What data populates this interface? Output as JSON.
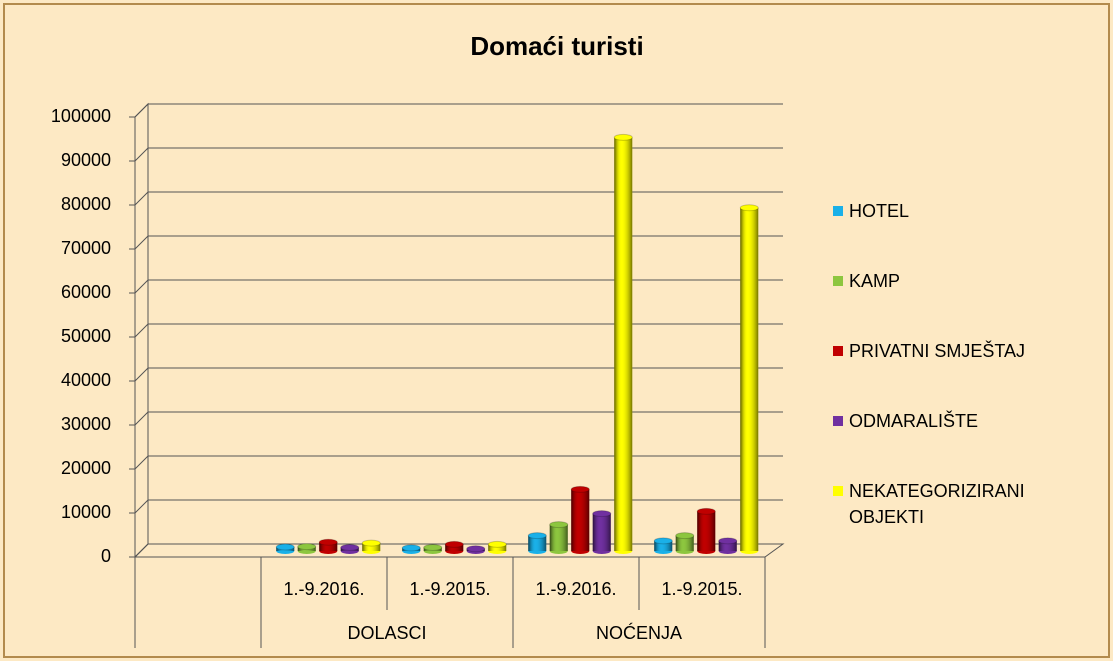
{
  "chart_data": {
    "type": "bar3d",
    "title": "Domaći turisti",
    "categories": [
      null,
      "1.-9.2016.",
      "1.-9.2015.",
      "1.-9.2016.",
      "1.-9.2015."
    ],
    "group_labels": [
      "DOLASCI",
      "NOĆENJA"
    ],
    "series": [
      {
        "name": "HOTEL",
        "color": "#1ab0e8",
        "values": [
          null,
          900,
          700,
          3500,
          2300
        ]
      },
      {
        "name": "KAMP",
        "color": "#8dc63f",
        "values": [
          null,
          1000,
          800,
          6000,
          3500
        ]
      },
      {
        "name": "PRIVATNI SMJEŠTAJ",
        "color": "#c00000",
        "values": [
          null,
          2000,
          1500,
          14000,
          9000
        ]
      },
      {
        "name": "ODMARALIŠTE",
        "color": "#7030a0",
        "values": [
          null,
          800,
          500,
          8500,
          2300
        ]
      },
      {
        "name": "NEKATEGORIZIRANI OBJEKTI",
        "color": "#ffff00",
        "values": [
          null,
          1800,
          1500,
          94000,
          78000
        ]
      }
    ],
    "ylim": [
      0,
      100000
    ],
    "yticks": [
      0,
      10000,
      20000,
      30000,
      40000,
      50000,
      60000,
      70000,
      80000,
      90000,
      100000
    ],
    "grid": true,
    "legend": "right"
  }
}
